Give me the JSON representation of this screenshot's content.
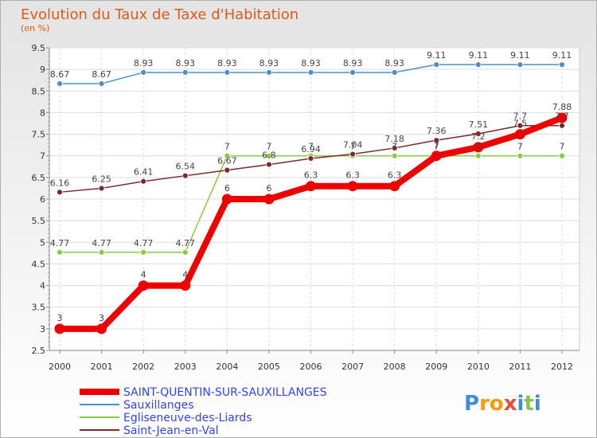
{
  "logo": {
    "text": "Proxiti",
    "letters": [
      "P",
      "r",
      "o",
      "x",
      "i",
      "t",
      "i"
    ],
    "colors": [
      "#3b8fd9",
      "#f39c12",
      "#f39c12",
      "#e74c3c",
      "#3b8fd9",
      "#8bc34a",
      "#3b8fd9"
    ]
  },
  "chart_data": {
    "type": "line",
    "title": "Evolution du Taux de Taxe d'Habitation",
    "subtitle": "(en %)",
    "xlabel": "",
    "ylabel": "",
    "x": [
      2000,
      2001,
      2002,
      2003,
      2004,
      2005,
      2006,
      2007,
      2008,
      2009,
      2010,
      2011,
      2012
    ],
    "ylim": [
      2.5,
      9.5
    ],
    "yticks": [
      2.5,
      3,
      3.5,
      4,
      4.5,
      5,
      5.5,
      6,
      6.5,
      7,
      7.5,
      8,
      8.5,
      9,
      9.5
    ],
    "legend_position": "bottom-left",
    "series": [
      {
        "name": "SAINT-QUENTIN-SUR-SAUXILLANGES",
        "color": "#ee0000",
        "emphasis": true,
        "values": [
          3,
          3,
          4,
          4,
          6,
          6,
          6.3,
          6.3,
          6.3,
          7,
          7.2,
          7.5,
          7.88
        ],
        "labels": [
          "3",
          "3",
          "4",
          "4",
          "6",
          "6",
          "6.3",
          "6.3",
          "6.3",
          "7",
          "7.2",
          "7.5",
          "7.88"
        ]
      },
      {
        "name": "Sauxillanges",
        "color": "#4a90c8",
        "emphasis": false,
        "values": [
          8.67,
          8.67,
          8.93,
          8.93,
          8.93,
          8.93,
          8.93,
          8.93,
          8.93,
          9.11,
          9.11,
          9.11,
          9.11
        ],
        "labels": [
          "8.67",
          "8.67",
          "8.93",
          "8.93",
          "8.93",
          "8.93",
          "8.93",
          "8.93",
          "8.93",
          "9.11",
          "9.11",
          "9.11",
          "9.11"
        ]
      },
      {
        "name": "Egliseneuve-des-Liards",
        "color": "#88cc44",
        "emphasis": false,
        "values": [
          4.77,
          4.77,
          4.77,
          4.77,
          7,
          7,
          7,
          7,
          7,
          7,
          7,
          7,
          7
        ],
        "labels": [
          "4.77",
          "4.77",
          "4.77",
          "4.77",
          "7",
          "7",
          "7",
          "7",
          "7",
          "7",
          "7",
          "7",
          "7"
        ]
      },
      {
        "name": "Saint-Jean-en-Val",
        "color": "#7a2a2a",
        "emphasis": false,
        "values": [
          6.16,
          6.25,
          6.41,
          6.54,
          6.67,
          6.8,
          6.94,
          7.04,
          7.18,
          7.36,
          7.51,
          7.7,
          7.7
        ],
        "labels": [
          "6.16",
          "6.25",
          "6.41",
          "6.54",
          "6.67",
          "6.8",
          "6.94",
          "7.04",
          "7.18",
          "7.36",
          "7.51",
          "7.7",
          "7.7"
        ]
      }
    ]
  }
}
